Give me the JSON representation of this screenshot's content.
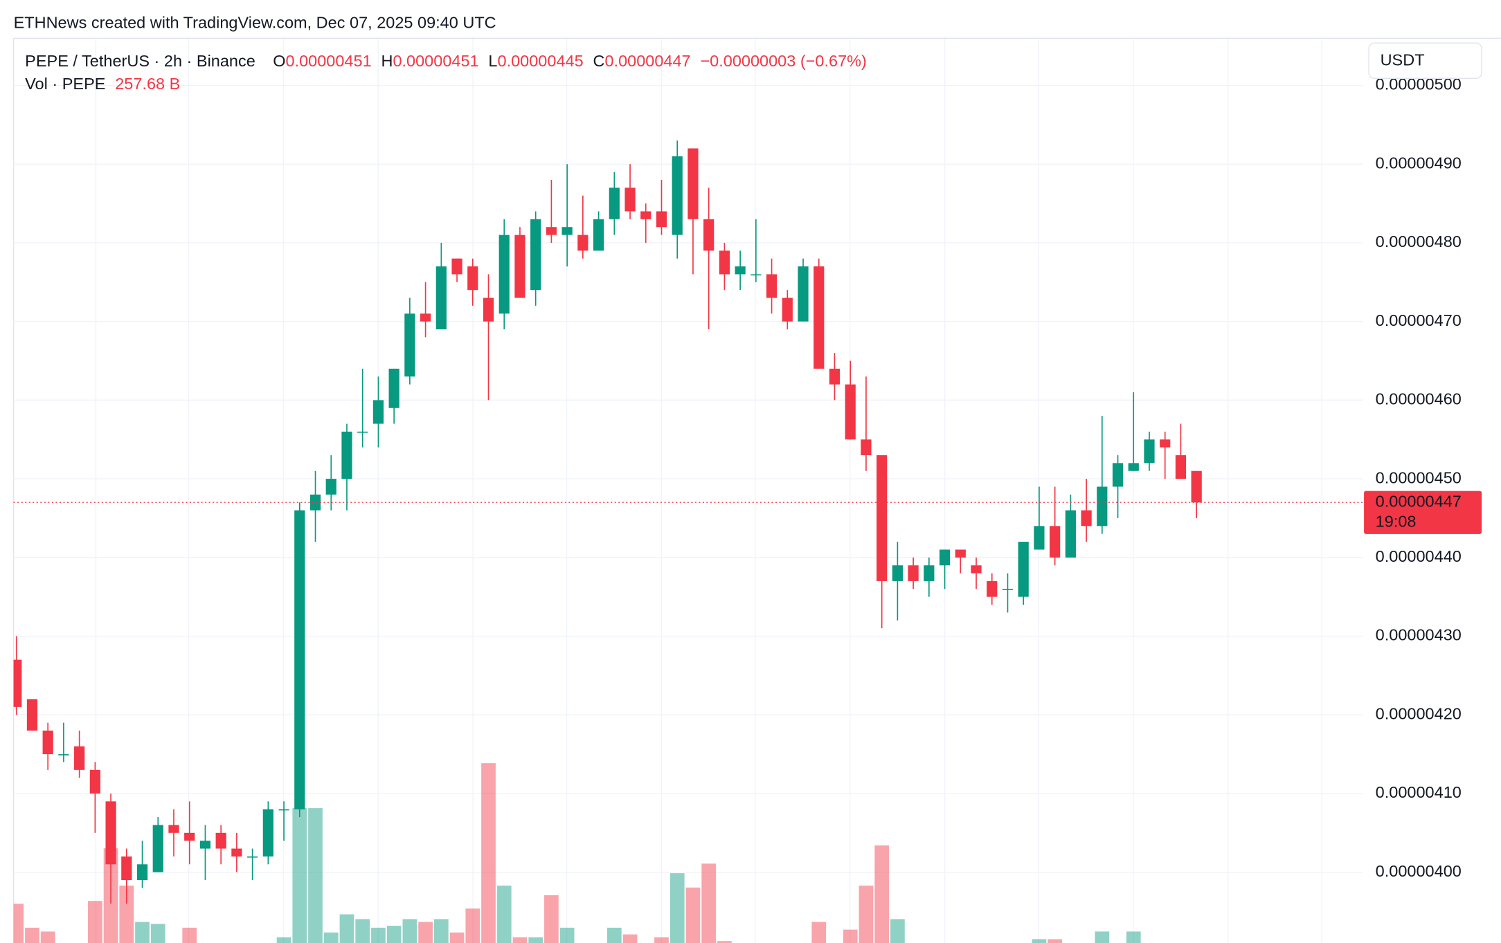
{
  "chart_data": {
    "type": "candlestick",
    "attribution": "ETHNews created with TradingView.com, Dec 07, 2025 09:40 UTC",
    "title": "PEPE / TetherUS · 2h · Binance",
    "ohlc_header": [
      {
        "key": "O",
        "text": "0.00000451"
      },
      {
        "key": "H",
        "text": "0.00000451"
      },
      {
        "key": "L",
        "text": "0.00000445"
      },
      {
        "key": "C",
        "text": "0.00000447"
      }
    ],
    "change": "−0.00000003 (−0.67%)",
    "currency": "USDT",
    "up_color": "#089981",
    "down_color": "#f23645",
    "open": [
      4.27e-06,
      4.22e-06,
      4.18e-06,
      4.15e-06,
      4.16e-06,
      4.13e-06,
      4.09e-06,
      4.02e-06,
      3.99e-06,
      4e-06,
      4.06e-06,
      4.05e-06,
      4.03e-06,
      4.05e-06,
      4.03e-06,
      4.02e-06,
      4.02e-06,
      4.08e-06,
      4.08e-06,
      4.46e-06,
      4.48e-06,
      4.5e-06,
      4.56e-06,
      4.57e-06,
      4.59e-06,
      4.63e-06,
      4.71e-06,
      4.69e-06,
      4.78e-06,
      4.77e-06,
      4.73e-06,
      4.71e-06,
      4.81e-06,
      4.74e-06,
      4.82e-06,
      4.81e-06,
      4.81e-06,
      4.79e-06,
      4.83e-06,
      4.87e-06,
      4.84e-06,
      4.84e-06,
      4.81e-06,
      4.92e-06,
      4.83e-06,
      4.79e-06,
      4.76e-06,
      4.76e-06,
      4.76e-06,
      4.73e-06,
      4.7e-06,
      4.77e-06,
      4.64e-06,
      4.62e-06,
      4.55e-06,
      4.53e-06,
      4.37e-06,
      4.39e-06,
      4.37e-06,
      4.39e-06,
      4.41e-06,
      4.39e-06,
      4.37e-06,
      4.36e-06,
      4.35e-06,
      4.41e-06,
      4.44e-06,
      4.4e-06,
      4.46e-06,
      4.44e-06,
      4.49e-06,
      4.51e-06,
      4.52e-06,
      4.55e-06,
      4.53e-06,
      4.51e-06
    ],
    "high": [
      4.3e-06,
      4.22e-06,
      4.19e-06,
      4.19e-06,
      4.18e-06,
      4.14e-06,
      4.1e-06,
      4.03e-06,
      4.04e-06,
      4.07e-06,
      4.08e-06,
      4.09e-06,
      4.06e-06,
      4.06e-06,
      4.05e-06,
      4.03e-06,
      4.09e-06,
      4.09e-06,
      4.47e-06,
      4.51e-06,
      4.53e-06,
      4.57e-06,
      4.64e-06,
      4.63e-06,
      4.64e-06,
      4.73e-06,
      4.75e-06,
      4.8e-06,
      4.78e-06,
      4.78e-06,
      4.76e-06,
      4.83e-06,
      4.82e-06,
      4.84e-06,
      4.88e-06,
      4.9e-06,
      4.86e-06,
      4.84e-06,
      4.89e-06,
      4.9e-06,
      4.85e-06,
      4.88e-06,
      4.93e-06,
      4.92e-06,
      4.87e-06,
      4.8e-06,
      4.79e-06,
      4.83e-06,
      4.78e-06,
      4.74e-06,
      4.78e-06,
      4.78e-06,
      4.66e-06,
      4.65e-06,
      4.63e-06,
      4.53e-06,
      4.42e-06,
      4.4e-06,
      4.4e-06,
      4.41e-06,
      4.41e-06,
      4.4e-06,
      4.38e-06,
      4.38e-06,
      4.42e-06,
      4.49e-06,
      4.49e-06,
      4.48e-06,
      4.5e-06,
      4.58e-06,
      4.53e-06,
      4.61e-06,
      4.56e-06,
      4.56e-06,
      4.57e-06,
      4.51e-06
    ],
    "low": [
      4.2e-06,
      4.18e-06,
      4.13e-06,
      4.14e-06,
      4.12e-06,
      4.05e-06,
      3.96e-06,
      3.96e-06,
      3.98e-06,
      4e-06,
      4.02e-06,
      4.01e-06,
      3.99e-06,
      4.01e-06,
      4e-06,
      3.99e-06,
      4.01e-06,
      4.04e-06,
      4.07e-06,
      4.42e-06,
      4.46e-06,
      4.46e-06,
      4.54e-06,
      4.54e-06,
      4.57e-06,
      4.62e-06,
      4.68e-06,
      4.69e-06,
      4.75e-06,
      4.72e-06,
      4.6e-06,
      4.69e-06,
      4.73e-06,
      4.72e-06,
      4.8e-06,
      4.77e-06,
      4.78e-06,
      4.79e-06,
      4.81e-06,
      4.83e-06,
      4.8e-06,
      4.81e-06,
      4.78e-06,
      4.76e-06,
      4.69e-06,
      4.74e-06,
      4.74e-06,
      4.75e-06,
      4.71e-06,
      4.69e-06,
      4.7e-06,
      4.64e-06,
      4.6e-06,
      4.55e-06,
      4.51e-06,
      4.31e-06,
      4.32e-06,
      4.36e-06,
      4.35e-06,
      4.36e-06,
      4.38e-06,
      4.36e-06,
      4.34e-06,
      4.33e-06,
      4.34e-06,
      4.41e-06,
      4.39e-06,
      4.4e-06,
      4.42e-06,
      4.43e-06,
      4.45e-06,
      4.51e-06,
      4.51e-06,
      4.5e-06,
      4.5e-06,
      4.45e-06
    ],
    "close": [
      4.21e-06,
      4.18e-06,
      4.15e-06,
      4.15e-06,
      4.13e-06,
      4.1e-06,
      4.01e-06,
      3.99e-06,
      4.01e-06,
      4.06e-06,
      4.05e-06,
      4.04e-06,
      4.04e-06,
      4.03e-06,
      4.02e-06,
      4.02e-06,
      4.08e-06,
      4.08e-06,
      4.46e-06,
      4.48e-06,
      4.5e-06,
      4.56e-06,
      4.56e-06,
      4.6e-06,
      4.64e-06,
      4.71e-06,
      4.7e-06,
      4.77e-06,
      4.76e-06,
      4.74e-06,
      4.7e-06,
      4.81e-06,
      4.73e-06,
      4.83e-06,
      4.81e-06,
      4.82e-06,
      4.79e-06,
      4.83e-06,
      4.87e-06,
      4.84e-06,
      4.83e-06,
      4.82e-06,
      4.91e-06,
      4.83e-06,
      4.79e-06,
      4.76e-06,
      4.77e-06,
      4.76e-06,
      4.73e-06,
      4.7e-06,
      4.77e-06,
      4.64e-06,
      4.62e-06,
      4.55e-06,
      4.53e-06,
      4.37e-06,
      4.39e-06,
      4.37e-06,
      4.39e-06,
      4.41e-06,
      4.4e-06,
      4.38e-06,
      4.35e-06,
      4.36e-06,
      4.42e-06,
      4.44e-06,
      4.4e-06,
      4.46e-06,
      4.44e-06,
      4.49e-06,
      4.52e-06,
      4.52e-06,
      4.55e-06,
      4.54e-06,
      4.5e-06,
      4.47e-06
    ],
    "volume": {
      "name": "Vol · PEPE",
      "last_label": "257.68 B",
      "values": [
        750,
        500,
        460,
        200,
        200,
        780,
        1330,
        940,
        560,
        540,
        200,
        500,
        250,
        250,
        250,
        250,
        250,
        400,
        1750,
        1750,
        450,
        640,
        590,
        500,
        520,
        590,
        560,
        590,
        450,
        700,
        2220,
        940,
        400,
        400,
        840,
        500,
        250,
        250,
        500,
        430,
        250,
        400,
        1070,
        920,
        1170,
        360,
        250,
        250,
        250,
        250,
        250,
        560,
        250,
        480,
        940,
        1360,
        590,
        250,
        250,
        250,
        250,
        250,
        250,
        250,
        250,
        380,
        380,
        250,
        250,
        460,
        250,
        460,
        250,
        250,
        250,
        257.68
      ]
    },
    "last_price": {
      "value": 4.47e-06,
      "label": "0.00000447",
      "countdown": "19:08"
    },
    "ylim": [
      3.91e-06,
      5.06e-06
    ],
    "yticks": [
      {
        "value": 4e-06,
        "label": "0.00000400"
      },
      {
        "value": 4.1e-06,
        "label": "0.00000410"
      },
      {
        "value": 4.2e-06,
        "label": "0.00000420"
      },
      {
        "value": 4.3e-06,
        "label": "0.00000430"
      },
      {
        "value": 4.4e-06,
        "label": "0.00000440"
      },
      {
        "value": 4.5e-06,
        "label": "0.00000450"
      },
      {
        "value": 4.6e-06,
        "label": "0.00000460"
      },
      {
        "value": 4.7e-06,
        "label": "0.00000470"
      },
      {
        "value": 4.8e-06,
        "label": "0.00000480"
      },
      {
        "value": 4.9e-06,
        "label": "0.00000490"
      },
      {
        "value": 5e-06,
        "label": "0.00000500"
      }
    ],
    "grid": true
  }
}
